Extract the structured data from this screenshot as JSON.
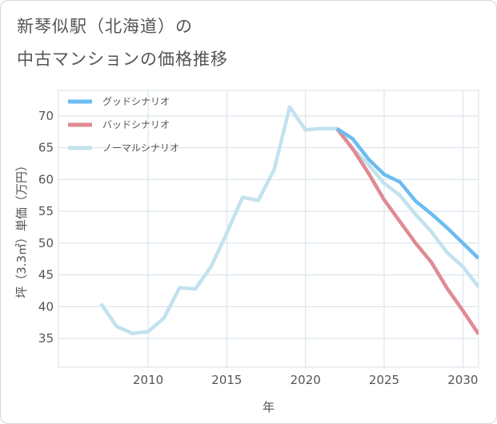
{
  "title": {
    "line1": "新琴似駅（北海道）の",
    "line2": "中古マンションの価格推移"
  },
  "colors": {
    "good": "#6bbcf0",
    "bad": "#e08a92",
    "normal": "#c2e2ef",
    "grid": "#d4e1ea",
    "axis": "#555555"
  },
  "chart_data": {
    "type": "line",
    "title": "新琴似駅（北海道）の中古マンションの価格推移",
    "xlabel": "年",
    "ylabel": "坪（3.3㎡）単価（万円）",
    "xlim": [
      2004.3,
      2031.0
    ],
    "ylim": [
      30.5,
      74.0
    ],
    "xticks": [
      2010,
      2015,
      2020,
      2025,
      2030
    ],
    "yticks": [
      35,
      40,
      45,
      50,
      55,
      60,
      65,
      70
    ],
    "grid": true,
    "legend_position": "top-left",
    "series": [
      {
        "name": "グッドシナリオ",
        "color_key": "good",
        "x": [
          2022,
          2023,
          2024,
          2025,
          2026,
          2027,
          2028,
          2029,
          2030,
          2031
        ],
        "y": [
          68.0,
          66.4,
          63.2,
          60.8,
          59.6,
          56.6,
          54.6,
          52.4,
          50.0,
          47.6
        ]
      },
      {
        "name": "バッドシナリオ",
        "color_key": "bad",
        "x": [
          2022,
          2023,
          2024,
          2025,
          2026,
          2027,
          2028,
          2029,
          2030,
          2031
        ],
        "y": [
          68.0,
          64.8,
          61.0,
          56.8,
          53.4,
          50.0,
          47.0,
          42.9,
          39.4,
          35.7
        ]
      },
      {
        "name": "ノーマルシナリオ",
        "color_key": "normal",
        "x": [
          2007,
          2008,
          2009,
          2010,
          2011,
          2012,
          2013,
          2014,
          2015,
          2016,
          2017,
          2018,
          2019,
          2020,
          2021,
          2022,
          2023,
          2024,
          2025,
          2026,
          2027,
          2028,
          2029,
          2030,
          2031
        ],
        "y": [
          40.5,
          36.9,
          35.8,
          36.1,
          38.2,
          43.0,
          42.8,
          46.3,
          51.6,
          57.2,
          56.7,
          61.5,
          71.4,
          67.8,
          68.0,
          68.0,
          64.9,
          62.3,
          59.4,
          57.5,
          54.5,
          51.8,
          48.5,
          46.3,
          43.1
        ]
      }
    ]
  }
}
